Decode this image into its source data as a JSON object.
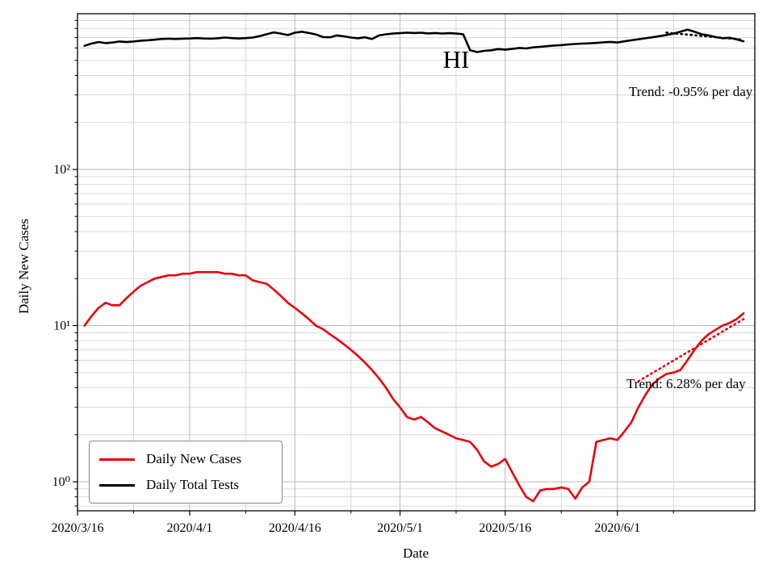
{
  "chart_data": {
    "type": "line",
    "title": "HI",
    "xlabel": "Date",
    "ylabel": "Daily New Cases",
    "y_scale": "log",
    "ylim": [
      0.65,
      1000
    ],
    "x_start_date": "2020/3/17",
    "x_step_days": 1,
    "x_ticks": [
      {
        "label": "2020/3/16",
        "day": 0
      },
      {
        "label": "2020/4/1",
        "day": 16
      },
      {
        "label": "2020/4/16",
        "day": 31
      },
      {
        "label": "2020/5/1",
        "day": 46
      },
      {
        "label": "2020/5/16",
        "day": 61
      },
      {
        "label": "2020/6/1",
        "day": 77
      }
    ],
    "x_minor_grid_days": [
      8,
      24,
      39,
      54,
      69,
      85
    ],
    "y_ticks": [
      {
        "label": "10⁰",
        "value": 1
      },
      {
        "label": "10¹",
        "value": 10
      },
      {
        "label": "10²",
        "value": 100
      }
    ],
    "grid": true,
    "legend_position": "lower left",
    "colors": {
      "new_cases": "#e8000b",
      "tests": "#000000",
      "grid_major": "#b8b8b8",
      "grid_minor": "#cfcfcf"
    },
    "series": [
      {
        "name": "Daily New Cases",
        "color": "#e8000b",
        "start_day": 1,
        "values": [
          10,
          11.5,
          13,
          14,
          13.5,
          13.5,
          15,
          16.5,
          18,
          19,
          20,
          20.5,
          21,
          21,
          21.5,
          21.5,
          22,
          22,
          22,
          22,
          21.5,
          21.5,
          21,
          21,
          19.5,
          19,
          18.5,
          17,
          15.5,
          14,
          13,
          12,
          11,
          10,
          9.5,
          8.8,
          8.2,
          7.6,
          7,
          6.4,
          5.8,
          5.2,
          4.6,
          4,
          3.4,
          3,
          2.6,
          2.5,
          2.6,
          2.4,
          2.2,
          2.1,
          2,
          1.9,
          1.85,
          1.8,
          1.6,
          1.35,
          1.25,
          1.3,
          1.4,
          1.15,
          0.95,
          0.8,
          0.75,
          0.88,
          0.9,
          0.9,
          0.92,
          0.9,
          0.78,
          0.92,
          1,
          1.8,
          1.85,
          1.9,
          1.85,
          2.1,
          2.4,
          3,
          3.6,
          4.2,
          4.6,
          4.9,
          5,
          5.2,
          6,
          7,
          8,
          8.8,
          9.4,
          10,
          10.4,
          11,
          12
        ]
      },
      {
        "name": "Daily Total Tests",
        "color": "#000000",
        "start_day": 1,
        "values": [
          620,
          640,
          655,
          645,
          650,
          660,
          655,
          660,
          668,
          672,
          678,
          685,
          688,
          685,
          688,
          690,
          694,
          690,
          688,
          692,
          700,
          694,
          690,
          694,
          700,
          715,
          735,
          755,
          742,
          725,
          752,
          762,
          748,
          732,
          705,
          702,
          722,
          712,
          700,
          692,
          702,
          684,
          722,
          734,
          742,
          746,
          752,
          748,
          752,
          744,
          748,
          742,
          746,
          742,
          735,
          580,
          565,
          575,
          580,
          590,
          585,
          592,
          600,
          596,
          605,
          610,
          616,
          622,
          626,
          632,
          636,
          640,
          642,
          646,
          652,
          656,
          650,
          662,
          672,
          682,
          692,
          702,
          714,
          726,
          742,
          762,
          785,
          762,
          735,
          722,
          705,
          692,
          697,
          682,
          662
        ]
      }
    ],
    "trends": [
      {
        "label": "Trend: 6.28% per day",
        "color": "#e8000b",
        "start_day": 80,
        "end_day": 95,
        "start_value": 4.4,
        "end_value": 11.0
      },
      {
        "label": "Trend: -0.95% per day",
        "color": "#000000",
        "start_day": 84,
        "end_day": 95,
        "start_value": 752,
        "end_value": 677
      }
    ]
  }
}
